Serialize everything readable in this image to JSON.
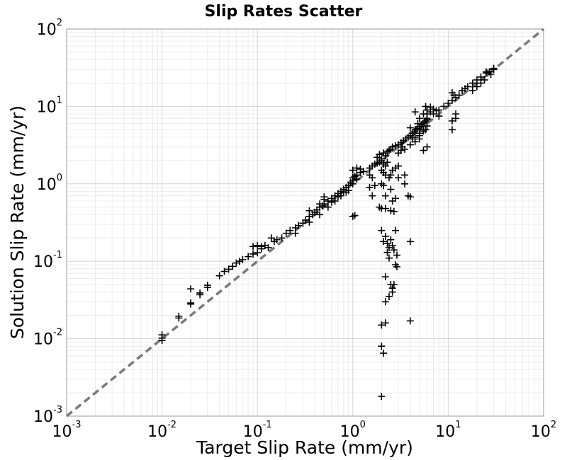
{
  "chart_data": {
    "type": "scatter",
    "title": "Slip Rates Scatter",
    "xlabel": "Target Slip Rate (mm/yr)",
    "ylabel": "Solution Slip Rate (mm/yr)",
    "xscale": "log",
    "yscale": "log",
    "xlim": [
      0.001,
      100
    ],
    "ylim": [
      0.001,
      100
    ],
    "grid": true,
    "marker": "plus",
    "marker_color": "#000000",
    "reference_line": {
      "style": "dashed",
      "color": "#777777",
      "from": [
        0.001,
        0.001
      ],
      "to": [
        100,
        100
      ]
    },
    "xticks": [
      {
        "base": "10",
        "exp": "-3"
      },
      {
        "base": "10",
        "exp": "-2"
      },
      {
        "base": "10",
        "exp": "-1"
      },
      {
        "base": "10",
        "exp": "0"
      },
      {
        "base": "10",
        "exp": "1"
      },
      {
        "base": "10",
        "exp": "2"
      }
    ],
    "yticks": [
      {
        "base": "10",
        "exp": "-3"
      },
      {
        "base": "10",
        "exp": "-2"
      },
      {
        "base": "10",
        "exp": "-1"
      },
      {
        "base": "10",
        "exp": "0"
      },
      {
        "base": "10",
        "exp": "1"
      },
      {
        "base": "10",
        "exp": "2"
      }
    ],
    "points": [
      [
        0.01,
        0.0095
      ],
      [
        0.01,
        0.0102
      ],
      [
        0.01,
        0.0112
      ],
      [
        0.015,
        0.0185
      ],
      [
        0.015,
        0.0195
      ],
      [
        0.02,
        0.028
      ],
      [
        0.02,
        0.029
      ],
      [
        0.02,
        0.044
      ],
      [
        0.025,
        0.037
      ],
      [
        0.025,
        0.039
      ],
      [
        0.03,
        0.046
      ],
      [
        0.03,
        0.049
      ],
      [
        0.04,
        0.065
      ],
      [
        0.045,
        0.074
      ],
      [
        0.05,
        0.079
      ],
      [
        0.055,
        0.086
      ],
      [
        0.06,
        0.095
      ],
      [
        0.065,
        0.1
      ],
      [
        0.07,
        0.105
      ],
      [
        0.08,
        0.115
      ],
      [
        0.09,
        0.124
      ],
      [
        0.1,
        0.129
      ],
      [
        0.09,
        0.155
      ],
      [
        0.1,
        0.16
      ],
      [
        0.11,
        0.155
      ],
      [
        0.12,
        0.16
      ],
      [
        0.11,
        0.145
      ],
      [
        0.13,
        0.15
      ],
      [
        0.15,
        0.18
      ],
      [
        0.16,
        0.19
      ],
      [
        0.14,
        0.2
      ],
      [
        0.18,
        0.2
      ],
      [
        0.2,
        0.23
      ],
      [
        0.22,
        0.25
      ],
      [
        0.25,
        0.27
      ],
      [
        0.27,
        0.29
      ],
      [
        0.3,
        0.31
      ],
      [
        0.32,
        0.34
      ],
      [
        0.35,
        0.38
      ],
      [
        0.35,
        0.45
      ],
      [
        0.38,
        0.4
      ],
      [
        0.4,
        0.43
      ],
      [
        0.42,
        0.46
      ],
      [
        0.45,
        0.5
      ],
      [
        0.45,
        0.55
      ],
      [
        0.48,
        0.52
      ],
      [
        0.5,
        0.55
      ],
      [
        0.5,
        0.63
      ],
      [
        0.5,
        0.68
      ],
      [
        0.55,
        0.6
      ],
      [
        0.6,
        0.65
      ],
      [
        0.65,
        0.7
      ],
      [
        0.7,
        0.75
      ],
      [
        0.75,
        0.8
      ],
      [
        0.8,
        0.85
      ],
      [
        0.85,
        0.9
      ],
      [
        0.9,
        0.95
      ],
      [
        0.95,
        1.05
      ],
      [
        0.65,
        0.6
      ],
      [
        0.75,
        0.7
      ],
      [
        0.85,
        0.78
      ],
      [
        0.9,
        0.82
      ],
      [
        0.55,
        0.5
      ],
      [
        0.45,
        0.4
      ],
      [
        0.35,
        0.32
      ],
      [
        0.25,
        0.23
      ],
      [
        0.6,
        0.58
      ],
      [
        0.7,
        0.68
      ],
      [
        0.8,
        0.78
      ],
      [
        1.0,
        1.0
      ],
      [
        1.0,
        1.1
      ],
      [
        1.0,
        1.2
      ],
      [
        1.05,
        1.25
      ],
      [
        1.1,
        1.15
      ],
      [
        1.1,
        1.3
      ],
      [
        1.2,
        1.4
      ],
      [
        1.3,
        1.45
      ],
      [
        1.0,
        1.5
      ],
      [
        1.1,
        1.6
      ],
      [
        1.2,
        1.55
      ],
      [
        1.0,
        0.38
      ],
      [
        1.05,
        0.39
      ],
      [
        1.5,
        1.6
      ],
      [
        1.6,
        1.7
      ],
      [
        1.7,
        1.8
      ],
      [
        1.8,
        1.85
      ],
      [
        1.9,
        1.9
      ],
      [
        2.0,
        2.0
      ],
      [
        1.5,
        1.3
      ],
      [
        1.6,
        1.2
      ],
      [
        1.5,
        0.9
      ],
      [
        1.7,
        0.95
      ],
      [
        1.6,
        0.7
      ],
      [
        1.8,
        2.2
      ],
      [
        1.9,
        2.4
      ],
      [
        2.0,
        2.1
      ],
      [
        2.1,
        2.5
      ],
      [
        2.2,
        2.3
      ],
      [
        2.3,
        2.6
      ],
      [
        2.4,
        2.7
      ],
      [
        2.5,
        2.8
      ],
      [
        2.6,
        3.0
      ],
      [
        2.8,
        3.1
      ],
      [
        3.0,
        3.2
      ],
      [
        3.2,
        3.4
      ],
      [
        3.4,
        3.6
      ],
      [
        3.6,
        3.8
      ],
      [
        3.8,
        4.0
      ],
      [
        4.0,
        4.2
      ],
      [
        4.2,
        4.5
      ],
      [
        4.4,
        4.7
      ],
      [
        4.6,
        5.0
      ],
      [
        4.8,
        5.2
      ],
      [
        5.0,
        5.5
      ],
      [
        5.2,
        5.8
      ],
      [
        5.4,
        6.0
      ],
      [
        5.6,
        6.2
      ],
      [
        5.8,
        6.5
      ],
      [
        6.0,
        6.8
      ],
      [
        5.8,
        5.0
      ],
      [
        6.0,
        5.6
      ],
      [
        2.0,
        1.5
      ],
      [
        2.1,
        1.8
      ],
      [
        2.2,
        1.7
      ],
      [
        2.3,
        1.9
      ],
      [
        2.1,
        1.4
      ],
      [
        2.2,
        1.3
      ],
      [
        2.4,
        1.2
      ],
      [
        2.5,
        1.3
      ],
      [
        2.6,
        1.5
      ],
      [
        2.8,
        1.6
      ],
      [
        3.0,
        1.7
      ],
      [
        3.0,
        2.5
      ],
      [
        3.2,
        2.7
      ],
      [
        3.3,
        3.0
      ],
      [
        3.5,
        2.8
      ],
      [
        4.0,
        3.2
      ],
      [
        4.2,
        3.8
      ],
      [
        4.5,
        4.0
      ],
      [
        5.0,
        4.5
      ],
      [
        5.5,
        5.0
      ],
      [
        2.0,
        1.0
      ],
      [
        2.1,
        0.95
      ],
      [
        2.5,
        0.85
      ],
      [
        2.2,
        0.7
      ],
      [
        3.0,
        1.2
      ],
      [
        3.5,
        1.0
      ],
      [
        3.8,
        0.7
      ],
      [
        4.0,
        0.68
      ],
      [
        3.5,
        1.3
      ],
      [
        2.8,
        0.65
      ],
      [
        2.6,
        0.6
      ],
      [
        1.9,
        0.5
      ],
      [
        2.0,
        0.48
      ],
      [
        2.2,
        0.48
      ],
      [
        2.5,
        0.45
      ],
      [
        2.7,
        0.44
      ],
      [
        4.0,
        0.18
      ],
      [
        2.0,
        0.25
      ],
      [
        2.2,
        0.21
      ],
      [
        2.3,
        0.17
      ],
      [
        2.4,
        0.15
      ],
      [
        2.5,
        0.19
      ],
      [
        2.6,
        0.16
      ],
      [
        2.8,
        0.25
      ],
      [
        2.9,
        0.12
      ],
      [
        2.1,
        0.18
      ],
      [
        2.3,
        0.13
      ],
      [
        2.4,
        0.11
      ],
      [
        2.7,
        0.14
      ],
      [
        2.8,
        0.09
      ],
      [
        2.9,
        0.085
      ],
      [
        2.2,
        0.063
      ],
      [
        2.5,
        0.05
      ],
      [
        2.6,
        0.045
      ],
      [
        2.7,
        0.05
      ],
      [
        2.4,
        0.035
      ],
      [
        2.6,
        0.04
      ],
      [
        2.2,
        0.03
      ],
      [
        2.0,
        0.015
      ],
      [
        2.2,
        0.016
      ],
      [
        4.0,
        0.017
      ],
      [
        2.0,
        0.008
      ],
      [
        2.1,
        0.0065
      ],
      [
        2.0,
        0.0018
      ],
      [
        4.0,
        5.3
      ],
      [
        4.5,
        5.0
      ],
      [
        5.0,
        4.2
      ],
      [
        5.5,
        4.8
      ],
      [
        6.0,
        7.0
      ],
      [
        6.0,
        8.0
      ],
      [
        6.5,
        8.5
      ],
      [
        7.0,
        8.0
      ],
      [
        7.5,
        8.8
      ],
      [
        8.0,
        9.0
      ],
      [
        9.0,
        10.0
      ],
      [
        10.0,
        11.0
      ],
      [
        11.0,
        12.0
      ],
      [
        12.0,
        13.0
      ],
      [
        13.0,
        14.0
      ],
      [
        14.0,
        16.0
      ],
      [
        15.0,
        17.0
      ],
      [
        16.0,
        18.0
      ],
      [
        18.0,
        20.0
      ],
      [
        20.0,
        22.0
      ],
      [
        22.0,
        24.0
      ],
      [
        25.0,
        27.0
      ],
      [
        27.0,
        28.0
      ],
      [
        30.0,
        30.0
      ],
      [
        11.0,
        15.0
      ],
      [
        11.5,
        14.0
      ],
      [
        12.0,
        8.0
      ],
      [
        11.0,
        6.5
      ],
      [
        11.0,
        5.0
      ],
      [
        12.0,
        7.0
      ],
      [
        8.0,
        7.5
      ],
      [
        7.0,
        9.2
      ],
      [
        6.5,
        9.8
      ],
      [
        6.0,
        9.0
      ],
      [
        5.8,
        10.0
      ],
      [
        5.5,
        8.0
      ],
      [
        5.0,
        7.0
      ],
      [
        4.5,
        8.5
      ],
      [
        4.8,
        6.0
      ],
      [
        4.5,
        3.5
      ],
      [
        5.0,
        3.8
      ],
      [
        5.5,
        2.7
      ],
      [
        6.0,
        3.0
      ],
      [
        20.0,
        18.0
      ],
      [
        22.0,
        20.0
      ],
      [
        24.0,
        22.0
      ],
      [
        18.0,
        16.0
      ],
      [
        26.0,
        27.0
      ],
      [
        28.0,
        26.0
      ],
      [
        25.0,
        28.0
      ],
      [
        30.0,
        31.0
      ]
    ]
  }
}
